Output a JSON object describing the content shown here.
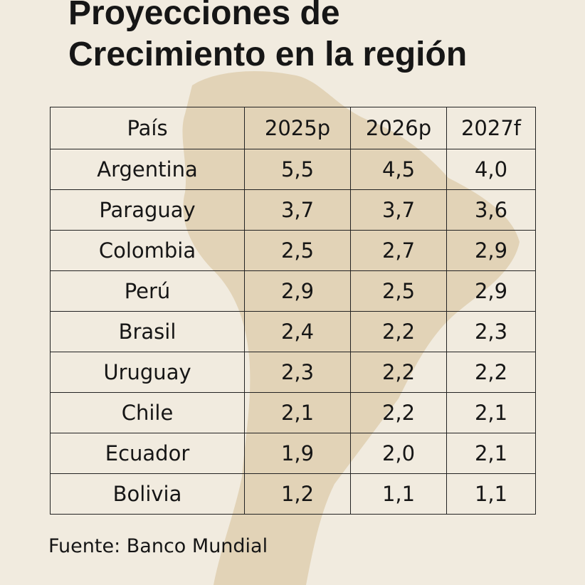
{
  "header": {
    "title": "Proyecciones de Crecimiento en la región"
  },
  "table": {
    "columns": [
      "País",
      "2025p",
      "2026p",
      "2027f"
    ],
    "rows": [
      [
        "Argentina",
        "5,5",
        "4,5",
        "4,0"
      ],
      [
        "Paraguay",
        "3,7",
        "3,7",
        "3,6"
      ],
      [
        "Colombia",
        "2,5",
        "2,7",
        "2,9"
      ],
      [
        "Perú",
        "2,9",
        "2,5",
        "2,9"
      ],
      [
        "Brasil",
        "2,4",
        "2,2",
        "2,3"
      ],
      [
        "Uruguay",
        "2,3",
        "2,2",
        "2,2"
      ],
      [
        "Chile",
        "2,1",
        "2,2",
        "2,1"
      ],
      [
        "Ecuador",
        "1,9",
        "2,0",
        "2,1"
      ],
      [
        "Bolivia",
        "1,2",
        "1,1",
        "1,1"
      ]
    ]
  },
  "footer": {
    "source": "Fuente: Banco Mundial"
  }
}
